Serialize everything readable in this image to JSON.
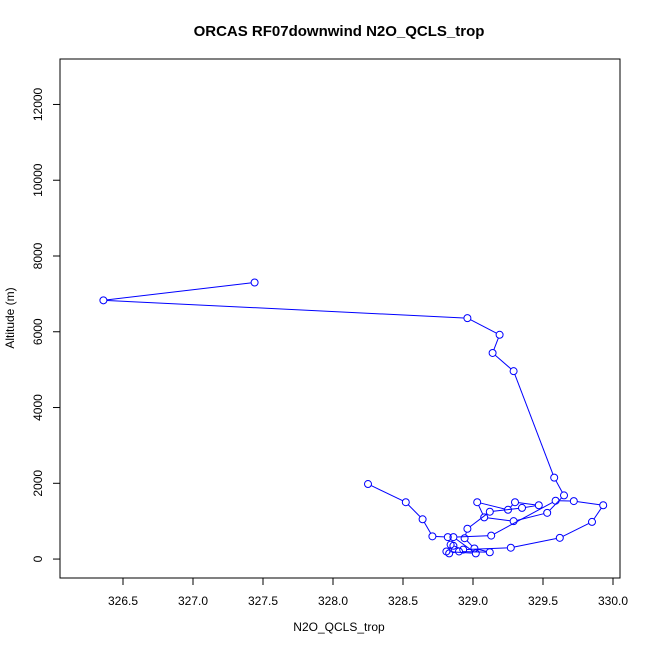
{
  "chart_data": {
    "type": "line",
    "title": "ORCAS RF07downwind N2O_QCLS_trop",
    "xlabel": "N2O_QCLS_trop",
    "ylabel": "Altitude (m)",
    "xlim": [
      326.05,
      330.05
    ],
    "ylim": [
      -500,
      13200
    ],
    "x_ticks": [
      "326.5",
      "327.0",
      "327.5",
      "328.0",
      "328.5",
      "329.0",
      "329.5",
      "330.0"
    ],
    "y_ticks": [
      "0",
      "2000",
      "4000",
      "6000",
      "8000",
      "10000",
      "12000"
    ],
    "line_color": "#0000ff",
    "markers": "open-circle",
    "series": [
      {
        "x": [
          327.44,
          326.36,
          328.96,
          329.19,
          329.14,
          329.29,
          329.58,
          329.65,
          329.53,
          329.29,
          329.08,
          329.03,
          329.25,
          329.3,
          329.47,
          329.35,
          329.12,
          328.96,
          328.94,
          329.01,
          329.12,
          328.9,
          328.83,
          328.86,
          328.81,
          329.02,
          328.86,
          329.13,
          329.59,
          329.72,
          329.93,
          329.85,
          329.62,
          329.27,
          328.93,
          328.84,
          328.82,
          328.71,
          328.64,
          328.52,
          328.25
        ],
        "y": [
          7300,
          6830,
          6360,
          5920,
          5440,
          4960,
          2150,
          1680,
          1220,
          1000,
          1100,
          1500,
          1300,
          1500,
          1420,
          1350,
          1250,
          800,
          550,
          280,
          180,
          200,
          150,
          350,
          200,
          150,
          580,
          620,
          1540,
          1530,
          1420,
          980,
          560,
          300,
          250,
          380,
          580,
          600,
          1050,
          1500,
          1980
        ]
      }
    ]
  }
}
